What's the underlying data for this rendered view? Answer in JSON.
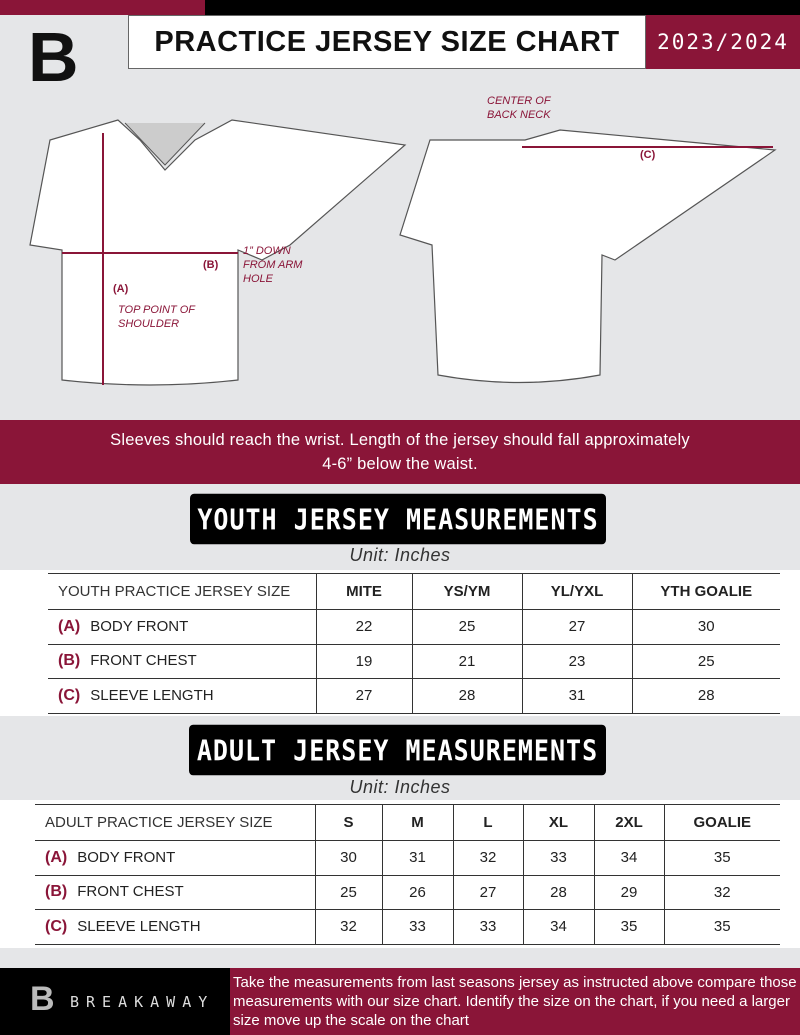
{
  "header": {
    "title": "PRACTICE JERSEY SIZE CHART",
    "season": "2023/2024",
    "logo_letter": "B"
  },
  "diagram": {
    "center_back_neck": "CENTER OF BACK NECK",
    "label_a": "(A)",
    "label_b": "(B)",
    "label_c": "(C)",
    "b_note": "1” DOWN FROM ARM HOLE",
    "a_note": "TOP POINT OF SHOULDER"
  },
  "band_text": "Sleeves should reach the wrist. Length of the jersey should fall approximately 4-6” below the waist.",
  "youth": {
    "title": "YOUTH JERSEY MEASUREMENTS",
    "unit": "Unit: Inches",
    "header": "YOUTH PRACTICE JERSEY SIZE",
    "sizes": [
      "MITE",
      "YS/YM",
      "YL/YXL",
      "YTH GOALIE"
    ],
    "rows": [
      {
        "letter": "(A)",
        "label": "BODY FRONT",
        "values": [
          "22",
          "25",
          "27",
          "30"
        ]
      },
      {
        "letter": "(B)",
        "label": "FRONT CHEST",
        "values": [
          "19",
          "21",
          "23",
          "25"
        ]
      },
      {
        "letter": "(C)",
        "label": "SLEEVE LENGTH",
        "values": [
          "27",
          "28",
          "31",
          "28"
        ]
      }
    ]
  },
  "adult": {
    "title": "ADULT JERSEY MEASUREMENTS",
    "unit": "Unit: Inches",
    "header": "ADULT PRACTICE JERSEY SIZE",
    "sizes": [
      "S",
      "M",
      "L",
      "XL",
      "2XL",
      "GOALIE"
    ],
    "rows": [
      {
        "letter": "(A)",
        "label": "BODY FRONT",
        "values": [
          "30",
          "31",
          "32",
          "33",
          "34",
          "35"
        ]
      },
      {
        "letter": "(B)",
        "label": "FRONT CHEST",
        "values": [
          "25",
          "26",
          "27",
          "28",
          "29",
          "32"
        ]
      },
      {
        "letter": "(C)",
        "label": "SLEEVE LENGTH",
        "values": [
          "32",
          "33",
          "33",
          "34",
          "35",
          "35"
        ]
      }
    ]
  },
  "footer": {
    "brand": "BREAKAWAY",
    "text": "Take the measurements from last seasons jersey as instructed above compare those measurements  with our size chart. Identify the size on the chart, if you need a larger size move up the scale on the chart"
  },
  "colors": {
    "accent": "#8a1538",
    "background": "#e5e6e8"
  }
}
